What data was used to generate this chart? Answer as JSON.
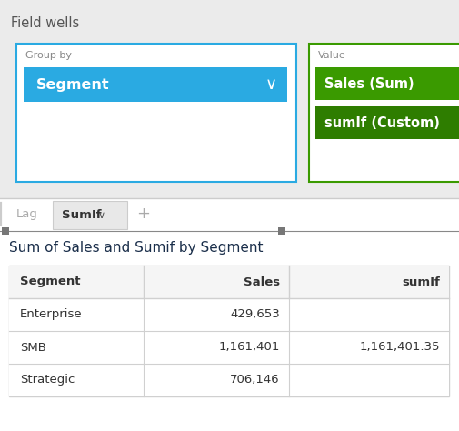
{
  "bg_color": "#ebebeb",
  "white": "#ffffff",
  "bottom_bg": "#ffffff",
  "field_wells_label": "Field wells",
  "group_by_label": "Group by",
  "segment_label": "Segment",
  "value_label": "Value",
  "sales_sum_label": "Sales (Sum)",
  "sumif_label": "sumIf (Custom)",
  "tab_lag": "Lag",
  "tab_sumif": "SumIf",
  "chart_title": "Sum of Sales and Sumif by Segment",
  "col_headers": [
    "Segment",
    "Sales",
    "sumIf"
  ],
  "rows": [
    [
      "Enterprise",
      "429,653",
      ""
    ],
    [
      "SMB",
      "1,161,401",
      "1,161,401.35"
    ],
    [
      "Strategic",
      "706,146",
      ""
    ]
  ],
  "blue_color": "#2aaae2",
  "green_color": "#3a9a00",
  "dark_green_color": "#2e7d00",
  "border_blue": "#2aaae2",
  "border_green": "#3a9a00",
  "tab_active_bg": "#e8e8e8",
  "table_border_color": "#d0d0d0",
  "table_header_bg": "#f5f5f5",
  "text_dark": "#333333",
  "text_title": "#1a2e4a",
  "text_gray": "#999999",
  "text_tab_inactive": "#aaaaaa",
  "handle_color": "#555555"
}
